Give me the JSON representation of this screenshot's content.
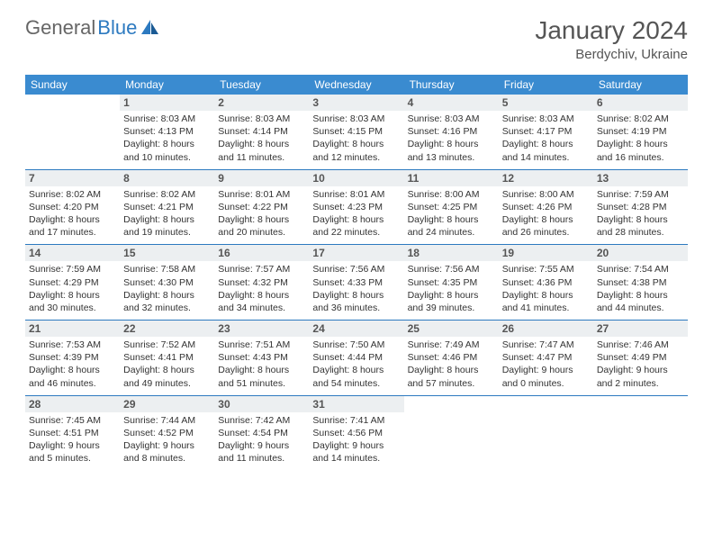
{
  "logo": {
    "text1": "General",
    "text2": "Blue"
  },
  "title": "January 2024",
  "location": "Berdychiv, Ukraine",
  "day_names": [
    "Sunday",
    "Monday",
    "Tuesday",
    "Wednesday",
    "Thursday",
    "Friday",
    "Saturday"
  ],
  "colors": {
    "header_bg": "#3a8bd0",
    "header_text": "#ffffff",
    "daynum_bg": "#eceff1",
    "border": "#2d7ac0",
    "logo_gray": "#666666",
    "logo_blue": "#2d7ac0"
  },
  "days": [
    {
      "n": 1,
      "sr": "8:03 AM",
      "ss": "4:13 PM",
      "dl": "8 hours and 10 minutes."
    },
    {
      "n": 2,
      "sr": "8:03 AM",
      "ss": "4:14 PM",
      "dl": "8 hours and 11 minutes."
    },
    {
      "n": 3,
      "sr": "8:03 AM",
      "ss": "4:15 PM",
      "dl": "8 hours and 12 minutes."
    },
    {
      "n": 4,
      "sr": "8:03 AM",
      "ss": "4:16 PM",
      "dl": "8 hours and 13 minutes."
    },
    {
      "n": 5,
      "sr": "8:03 AM",
      "ss": "4:17 PM",
      "dl": "8 hours and 14 minutes."
    },
    {
      "n": 6,
      "sr": "8:02 AM",
      "ss": "4:19 PM",
      "dl": "8 hours and 16 minutes."
    },
    {
      "n": 7,
      "sr": "8:02 AM",
      "ss": "4:20 PM",
      "dl": "8 hours and 17 minutes."
    },
    {
      "n": 8,
      "sr": "8:02 AM",
      "ss": "4:21 PM",
      "dl": "8 hours and 19 minutes."
    },
    {
      "n": 9,
      "sr": "8:01 AM",
      "ss": "4:22 PM",
      "dl": "8 hours and 20 minutes."
    },
    {
      "n": 10,
      "sr": "8:01 AM",
      "ss": "4:23 PM",
      "dl": "8 hours and 22 minutes."
    },
    {
      "n": 11,
      "sr": "8:00 AM",
      "ss": "4:25 PM",
      "dl": "8 hours and 24 minutes."
    },
    {
      "n": 12,
      "sr": "8:00 AM",
      "ss": "4:26 PM",
      "dl": "8 hours and 26 minutes."
    },
    {
      "n": 13,
      "sr": "7:59 AM",
      "ss": "4:28 PM",
      "dl": "8 hours and 28 minutes."
    },
    {
      "n": 14,
      "sr": "7:59 AM",
      "ss": "4:29 PM",
      "dl": "8 hours and 30 minutes."
    },
    {
      "n": 15,
      "sr": "7:58 AM",
      "ss": "4:30 PM",
      "dl": "8 hours and 32 minutes."
    },
    {
      "n": 16,
      "sr": "7:57 AM",
      "ss": "4:32 PM",
      "dl": "8 hours and 34 minutes."
    },
    {
      "n": 17,
      "sr": "7:56 AM",
      "ss": "4:33 PM",
      "dl": "8 hours and 36 minutes."
    },
    {
      "n": 18,
      "sr": "7:56 AM",
      "ss": "4:35 PM",
      "dl": "8 hours and 39 minutes."
    },
    {
      "n": 19,
      "sr": "7:55 AM",
      "ss": "4:36 PM",
      "dl": "8 hours and 41 minutes."
    },
    {
      "n": 20,
      "sr": "7:54 AM",
      "ss": "4:38 PM",
      "dl": "8 hours and 44 minutes."
    },
    {
      "n": 21,
      "sr": "7:53 AM",
      "ss": "4:39 PM",
      "dl": "8 hours and 46 minutes."
    },
    {
      "n": 22,
      "sr": "7:52 AM",
      "ss": "4:41 PM",
      "dl": "8 hours and 49 minutes."
    },
    {
      "n": 23,
      "sr": "7:51 AM",
      "ss": "4:43 PM",
      "dl": "8 hours and 51 minutes."
    },
    {
      "n": 24,
      "sr": "7:50 AM",
      "ss": "4:44 PM",
      "dl": "8 hours and 54 minutes."
    },
    {
      "n": 25,
      "sr": "7:49 AM",
      "ss": "4:46 PM",
      "dl": "8 hours and 57 minutes."
    },
    {
      "n": 26,
      "sr": "7:47 AM",
      "ss": "4:47 PM",
      "dl": "9 hours and 0 minutes."
    },
    {
      "n": 27,
      "sr": "7:46 AM",
      "ss": "4:49 PM",
      "dl": "9 hours and 2 minutes."
    },
    {
      "n": 28,
      "sr": "7:45 AM",
      "ss": "4:51 PM",
      "dl": "9 hours and 5 minutes."
    },
    {
      "n": 29,
      "sr": "7:44 AM",
      "ss": "4:52 PM",
      "dl": "9 hours and 8 minutes."
    },
    {
      "n": 30,
      "sr": "7:42 AM",
      "ss": "4:54 PM",
      "dl": "9 hours and 11 minutes."
    },
    {
      "n": 31,
      "sr": "7:41 AM",
      "ss": "4:56 PM",
      "dl": "9 hours and 14 minutes."
    }
  ],
  "labels": {
    "sunrise": "Sunrise:",
    "sunset": "Sunset:",
    "daylight": "Daylight:"
  },
  "first_day_offset": 1
}
